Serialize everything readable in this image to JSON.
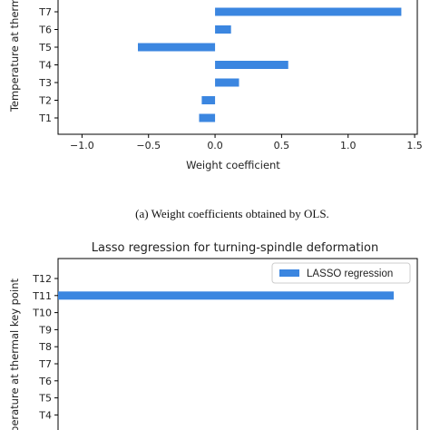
{
  "caption": "(a)    Weight coefficients obtained by OLS.",
  "colors": {
    "bar": "#3b86e0",
    "axis": "#000000"
  },
  "chart_data": [
    {
      "type": "bar",
      "orientation": "horizontal",
      "title": "",
      "xlabel": "Weight coefficient",
      "ylabel": "Temperature at therm",
      "xlim": [
        -1.18,
        1.52
      ],
      "xticks": [
        -1.0,
        -0.5,
        0.0,
        0.5,
        1.0,
        1.5
      ],
      "xtick_labels": [
        "−1.0",
        "−0.5",
        "0.0",
        "0.5",
        "1.0",
        "1.5"
      ],
      "categories": [
        "T7",
        "T6",
        "T5",
        "T4",
        "T3",
        "T2",
        "T1"
      ],
      "values": [
        1.4,
        0.12,
        -0.58,
        0.55,
        0.18,
        -0.1,
        -0.12
      ]
    },
    {
      "type": "bar",
      "orientation": "horizontal",
      "title": "Lasso regression for turning-spindle deformation",
      "xlabel": "",
      "ylabel": "perature at thermal key point",
      "legend": {
        "position": "top-right",
        "label": "LASSO regression"
      },
      "xlim": [
        0,
        1.0
      ],
      "categories": [
        "T12",
        "T11",
        "T10",
        "T9",
        "T8",
        "T7",
        "T6",
        "T5",
        "T4"
      ],
      "values": [
        0,
        1.0,
        0,
        0,
        0,
        0,
        0,
        0,
        0
      ]
    }
  ]
}
